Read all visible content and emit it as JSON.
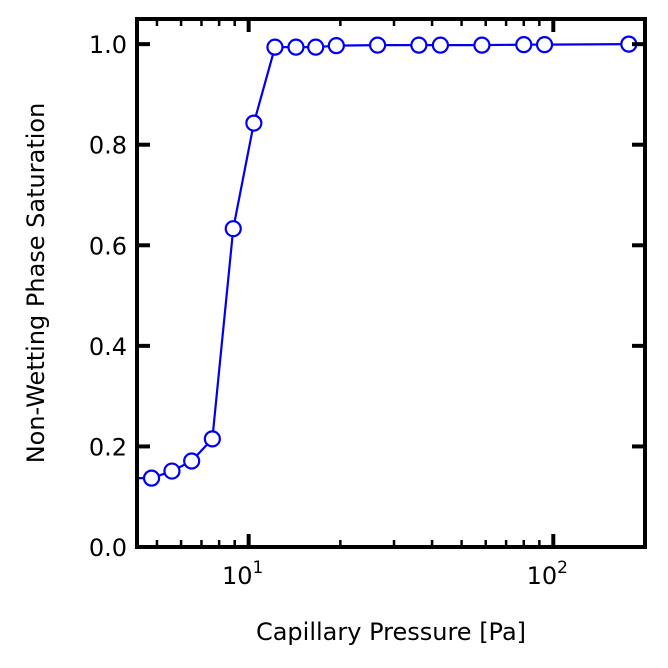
{
  "chart_data": {
    "type": "line",
    "xlabel": "Capillary Pressure [Pa]",
    "ylabel": "Non-Wetting Phase Saturation",
    "xscale": "log",
    "xlim": [
      4.3,
      200
    ],
    "ylim": [
      0.0,
      1.05
    ],
    "grid": false,
    "legend": "none",
    "x_ticks": [
      {
        "base": "10",
        "exp": "1",
        "value": 10
      },
      {
        "base": "10",
        "exp": "2",
        "value": 100
      }
    ],
    "y_ticks": [
      "0.0",
      "0.2",
      "0.4",
      "0.6",
      "0.8",
      "1.0"
    ],
    "series": [
      {
        "color": "#0000ee",
        "marker": "open-circle",
        "x": [
          4.3,
          4.8,
          5.6,
          6.5,
          7.6,
          8.9,
          10.4,
          12.2,
          14.3,
          16.6,
          19.4,
          26.5,
          36.2,
          42.6,
          58.3,
          80.0,
          93.6,
          177.0,
          200.0
        ],
        "y": [
          0.137,
          0.137,
          0.151,
          0.171,
          0.215,
          0.633,
          0.843,
          0.994,
          0.994,
          0.994,
          0.997,
          0.998,
          0.998,
          0.998,
          0.998,
          0.999,
          0.999,
          1.0,
          1.0
        ],
        "markers_shown": [
          false,
          true,
          true,
          true,
          true,
          true,
          true,
          true,
          true,
          true,
          true,
          true,
          true,
          true,
          true,
          true,
          true,
          true,
          false
        ]
      }
    ]
  }
}
